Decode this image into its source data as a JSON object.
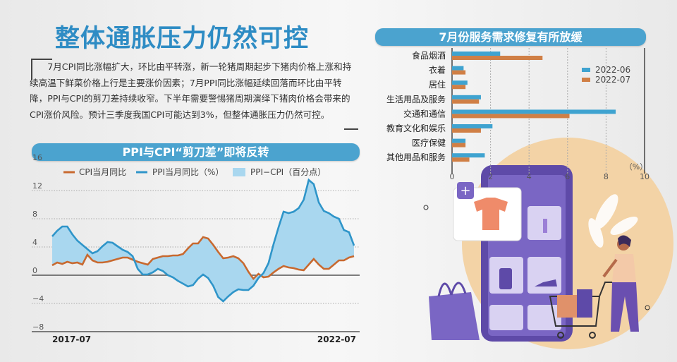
{
  "title": "整体通胀压力仍然可控",
  "summary": "7月CPI同比涨幅扩大，环比由平转涨，新一轮猪周期起步下猪肉价格上涨和持续高温下鲜菜价格上行是主要涨价因素；7月PPI同比涨幅延续回落而环比由平转降，PPI与CPI的剪刀差持续收窄。下半年需要警惕猪周期演绎下猪肉价格会带来的CPI涨价风险。预计三季度我国CPI可能达到3%，但整体通胀压力仍然可控。",
  "colors": {
    "cpi": "#c8692f",
    "ppi": "#2f95c9",
    "gap": "#a9d7ef",
    "bar_2022_06": "#3fa3d0",
    "bar_2022_07": "#d07f45",
    "banner": "#4ba3cf",
    "title": "#2e8cc4"
  },
  "chart_data": [
    {
      "type": "line",
      "title": "PPI与CPI“剪刀差”即将反转",
      "x_start_label": "2017-07",
      "x_end_label": "2022-07",
      "ylim": [
        -8,
        16
      ],
      "yticks": [
        16,
        12,
        8,
        4,
        0,
        -4,
        -8
      ],
      "grid": true,
      "legend_placement": "top",
      "series": [
        {
          "name": "CPI当月同比",
          "values": [
            1.4,
            1.8,
            1.6,
            1.9,
            1.7,
            1.8,
            1.5,
            2.9,
            2.1,
            1.8,
            1.8,
            1.9,
            2.1,
            2.3,
            2.5,
            2.5,
            2.2,
            1.9,
            1.7,
            1.5,
            2.3,
            2.5,
            2.7,
            2.7,
            2.8,
            2.8,
            3.0,
            3.8,
            4.5,
            4.5,
            5.4,
            5.2,
            4.3,
            3.3,
            2.4,
            2.5,
            2.7,
            2.4,
            1.7,
            0.5,
            -0.5,
            0.2,
            -0.3,
            -0.2,
            0.4,
            0.9,
            1.3,
            1.1,
            1.0,
            0.8,
            0.7,
            1.5,
            2.3,
            1.5,
            0.9,
            0.9,
            1.5,
            2.1,
            2.1,
            2.5,
            2.7
          ]
        },
        {
          "name": "PPI当月同比（%）",
          "values": [
            5.5,
            6.3,
            6.9,
            6.9,
            5.8,
            4.9,
            4.3,
            3.7,
            3.1,
            3.4,
            4.1,
            4.7,
            4.6,
            4.1,
            3.6,
            3.3,
            2.7,
            0.9,
            0.1,
            0.1,
            0.4,
            0.9,
            0.6,
            0.0,
            -0.3,
            -0.8,
            -1.2,
            -1.6,
            -1.4,
            -0.5,
            0.1,
            -0.4,
            -1.5,
            -3.1,
            -3.7,
            -3.0,
            -2.4,
            -2.0,
            -2.1,
            -2.1,
            -1.5,
            -0.4,
            0.3,
            1.7,
            4.4,
            6.8,
            9.0,
            8.8,
            9.0,
            9.5,
            10.7,
            13.5,
            12.9,
            10.3,
            9.1,
            8.8,
            8.3,
            8.0,
            6.4,
            6.1,
            4.2
          ]
        }
      ],
      "area_name": "PPI−CPI（百分点）"
    },
    {
      "type": "bar",
      "orientation": "horizontal",
      "title": "7月份服务需求修复有所放缓",
      "unit": "（%）",
      "categories": [
        "食品烟酒",
        "衣着",
        "居住",
        "生活用品及服务",
        "交通和通信",
        "教育文化和娱乐",
        "医疗保健",
        "其他用品和服务"
      ],
      "xlim": [
        0,
        10
      ],
      "xticks": [
        0,
        2,
        4,
        6,
        8,
        10
      ],
      "grid": true,
      "legend_placement": "top-right",
      "series": [
        {
          "name": "2022-06",
          "values": [
            2.5,
            0.6,
            0.8,
            1.5,
            8.5,
            2.1,
            0.7,
            1.7
          ]
        },
        {
          "name": "2022-07",
          "values": [
            4.7,
            0.7,
            0.7,
            1.4,
            6.1,
            1.5,
            0.7,
            0.9
          ]
        }
      ]
    }
  ]
}
